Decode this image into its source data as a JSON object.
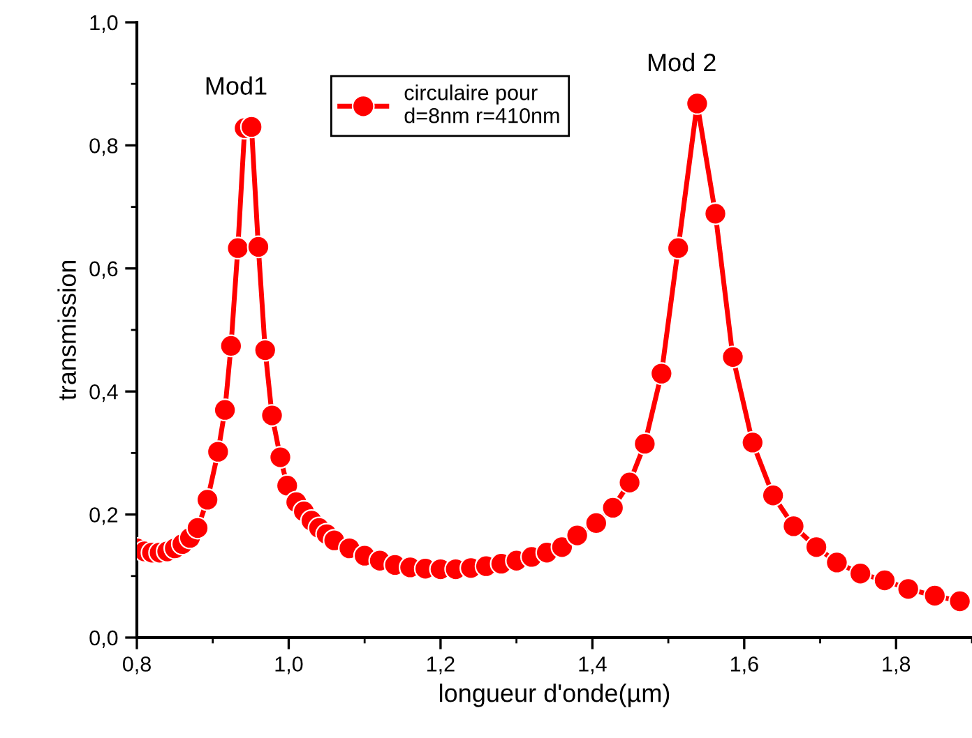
{
  "chart_data": {
    "type": "line",
    "xlabel": "longueur d'onde(µm)",
    "ylabel": "transmission",
    "xlim": [
      0.8,
      1.9
    ],
    "ylim": [
      0.0,
      1.0
    ],
    "xticks": [
      {
        "value": 0.8,
        "label": "0,8"
      },
      {
        "value": 1.0,
        "label": "1,0"
      },
      {
        "value": 1.2,
        "label": "1,2"
      },
      {
        "value": 1.4,
        "label": "1,4"
      },
      {
        "value": 1.6,
        "label": "1,6"
      },
      {
        "value": 1.8,
        "label": "1,8"
      }
    ],
    "yticks": [
      {
        "value": 0.0,
        "label": "0,0"
      },
      {
        "value": 0.2,
        "label": "0,2"
      },
      {
        "value": 0.4,
        "label": "0,4"
      },
      {
        "value": 0.6,
        "label": "0,6"
      },
      {
        "value": 0.8,
        "label": "0,8"
      },
      {
        "value": 1.0,
        "label": "1,0"
      }
    ],
    "grid": false,
    "legend": "top",
    "marker": "circle",
    "line_style": "solid",
    "annotations": [
      {
        "text": "Mod1",
        "x": 0.951,
        "y": 0.83
      },
      {
        "text": "Mod 2",
        "x": 1.538,
        "y": 0.868
      }
    ],
    "series": [
      {
        "name": "circulaire pour\nd=8nm r=410nm",
        "color": "#ff0000",
        "x": [
          0.8,
          0.81,
          0.82,
          0.83,
          0.84,
          0.85,
          0.86,
          0.87,
          0.88,
          0.893,
          0.907,
          0.916,
          0.924,
          0.933,
          0.942,
          0.951,
          0.96,
          0.969,
          0.978,
          0.989,
          0.998,
          1.01,
          1.02,
          1.03,
          1.04,
          1.05,
          1.06,
          1.08,
          1.1,
          1.12,
          1.14,
          1.16,
          1.18,
          1.2,
          1.22,
          1.24,
          1.26,
          1.28,
          1.3,
          1.32,
          1.34,
          1.36,
          1.38,
          1.405,
          1.427,
          1.449,
          1.469,
          1.491,
          1.513,
          1.538,
          1.562,
          1.585,
          1.611,
          1.638,
          1.665,
          1.695,
          1.722,
          1.753,
          1.785,
          1.816,
          1.851,
          1.884
        ],
        "values": [
          0.145,
          0.14,
          0.138,
          0.138,
          0.14,
          0.145,
          0.152,
          0.162,
          0.178,
          0.224,
          0.302,
          0.37,
          0.474,
          0.633,
          0.828,
          0.83,
          0.635,
          0.467,
          0.361,
          0.293,
          0.247,
          0.22,
          0.205,
          0.19,
          0.178,
          0.168,
          0.158,
          0.145,
          0.133,
          0.125,
          0.118,
          0.114,
          0.112,
          0.111,
          0.111,
          0.113,
          0.116,
          0.12,
          0.125,
          0.131,
          0.138,
          0.147,
          0.166,
          0.186,
          0.211,
          0.252,
          0.315,
          0.429,
          0.633,
          0.868,
          0.689,
          0.456,
          0.317,
          0.231,
          0.181,
          0.147,
          0.122,
          0.104,
          0.093,
          0.079,
          0.068,
          0.059
        ]
      }
    ]
  }
}
